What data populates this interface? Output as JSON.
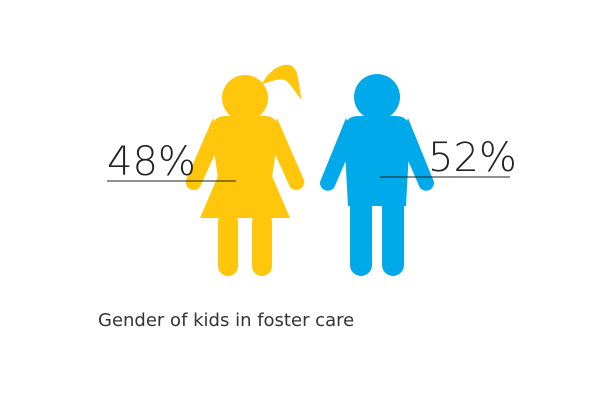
{
  "caption": "Gender of kids in foster care",
  "chart_data": {
    "type": "pictogram",
    "caption": "Gender of kids in foster care",
    "series": [
      {
        "label": "48%",
        "value": 48,
        "unit": "%",
        "color": "#FFC60B",
        "icon": "girl-icon"
      },
      {
        "label": "52%",
        "value": 52,
        "unit": "%",
        "color": "#00A9E9",
        "icon": "boy-icon"
      }
    ]
  }
}
